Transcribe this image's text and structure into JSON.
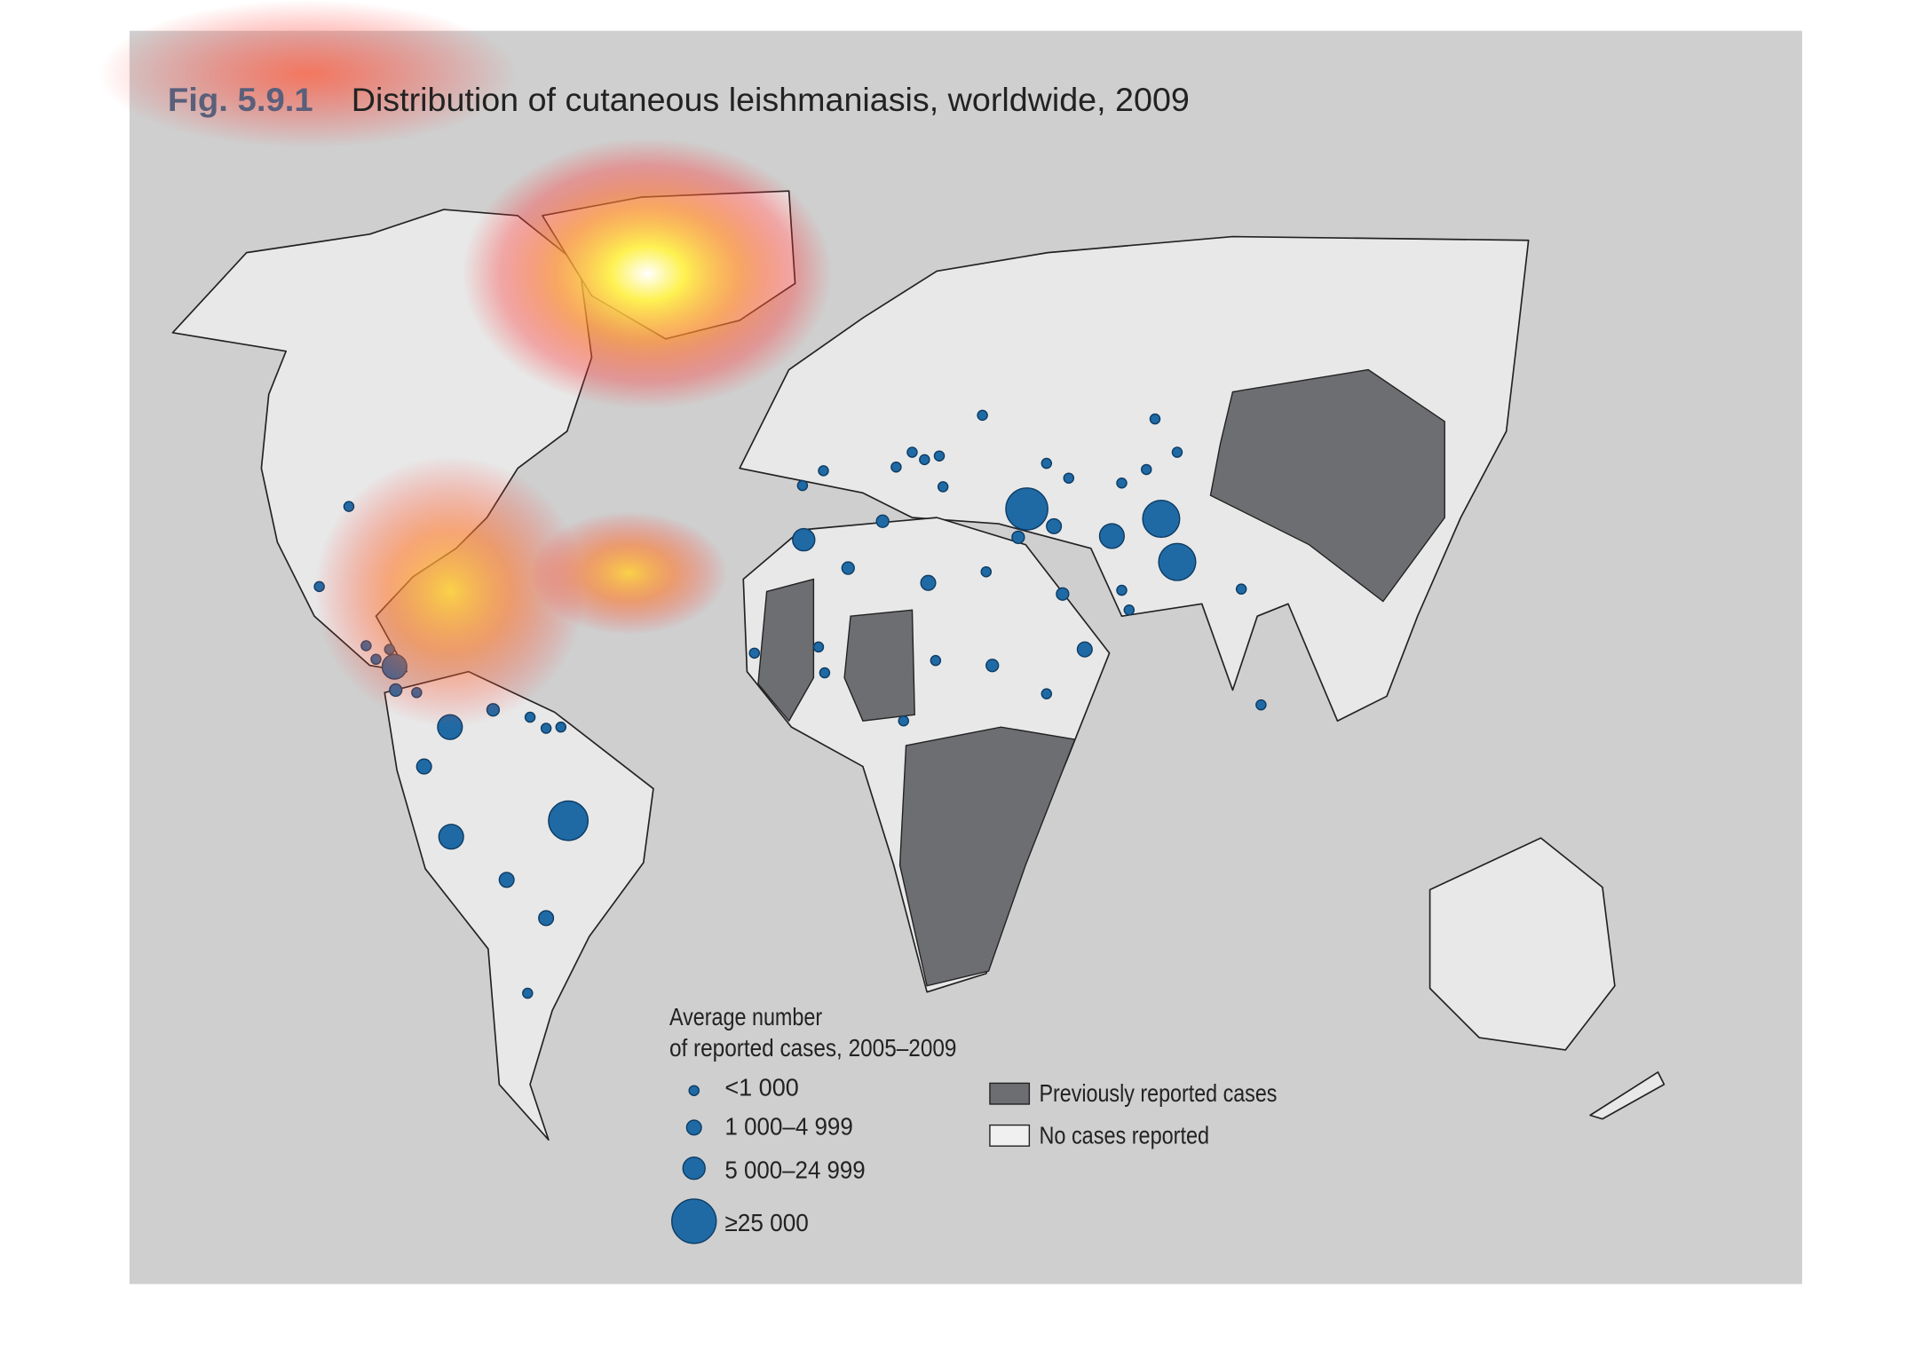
{
  "figure": {
    "number": "Fig. 5.9.1",
    "title": "Distribution of cutaneous leishmaniasis, worldwide, 2009"
  },
  "legend": {
    "title": [
      "Average number",
      "of reported cases, 2005–2009"
    ],
    "sizes": [
      "<1 000",
      "1 000–4 999",
      "5 000–24 999",
      "≥25 000"
    ],
    "shading": [
      "Previously reported cases",
      "No cases reported"
    ]
  }
}
